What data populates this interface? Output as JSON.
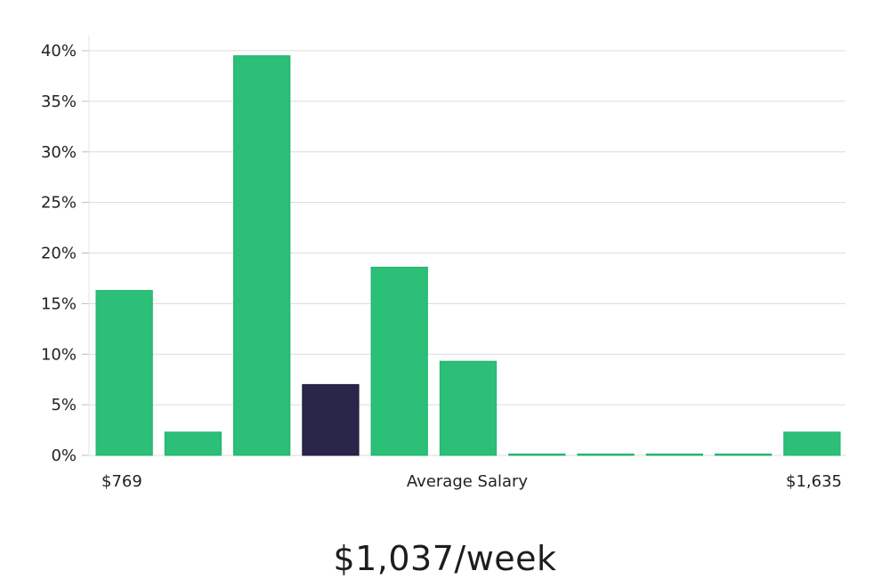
{
  "chart_data": {
    "type": "bar",
    "title": "",
    "xlabel": "Average Salary",
    "ylabel": "",
    "ylim": [
      0,
      40
    ],
    "yticks": [
      "0%",
      "5%",
      "10%",
      "15%",
      "20%",
      "25%",
      "30%",
      "35%",
      "40%"
    ],
    "ytick_values": [
      0,
      5,
      10,
      15,
      20,
      25,
      30,
      35,
      40
    ],
    "x_min_label": "$769",
    "x_max_label": "$1,635",
    "grid": true,
    "values": [
      16.3,
      2.3,
      39.5,
      7.0,
      18.6,
      9.3,
      0,
      0,
      0,
      0,
      2.3
    ],
    "highlight_index": 3,
    "colors": {
      "bar": "#2bbf77",
      "highlight": "#29264a",
      "grid": "#dcdcdc",
      "axis": "#bdbdbd"
    }
  },
  "summary": {
    "value": "$1,037/week"
  }
}
